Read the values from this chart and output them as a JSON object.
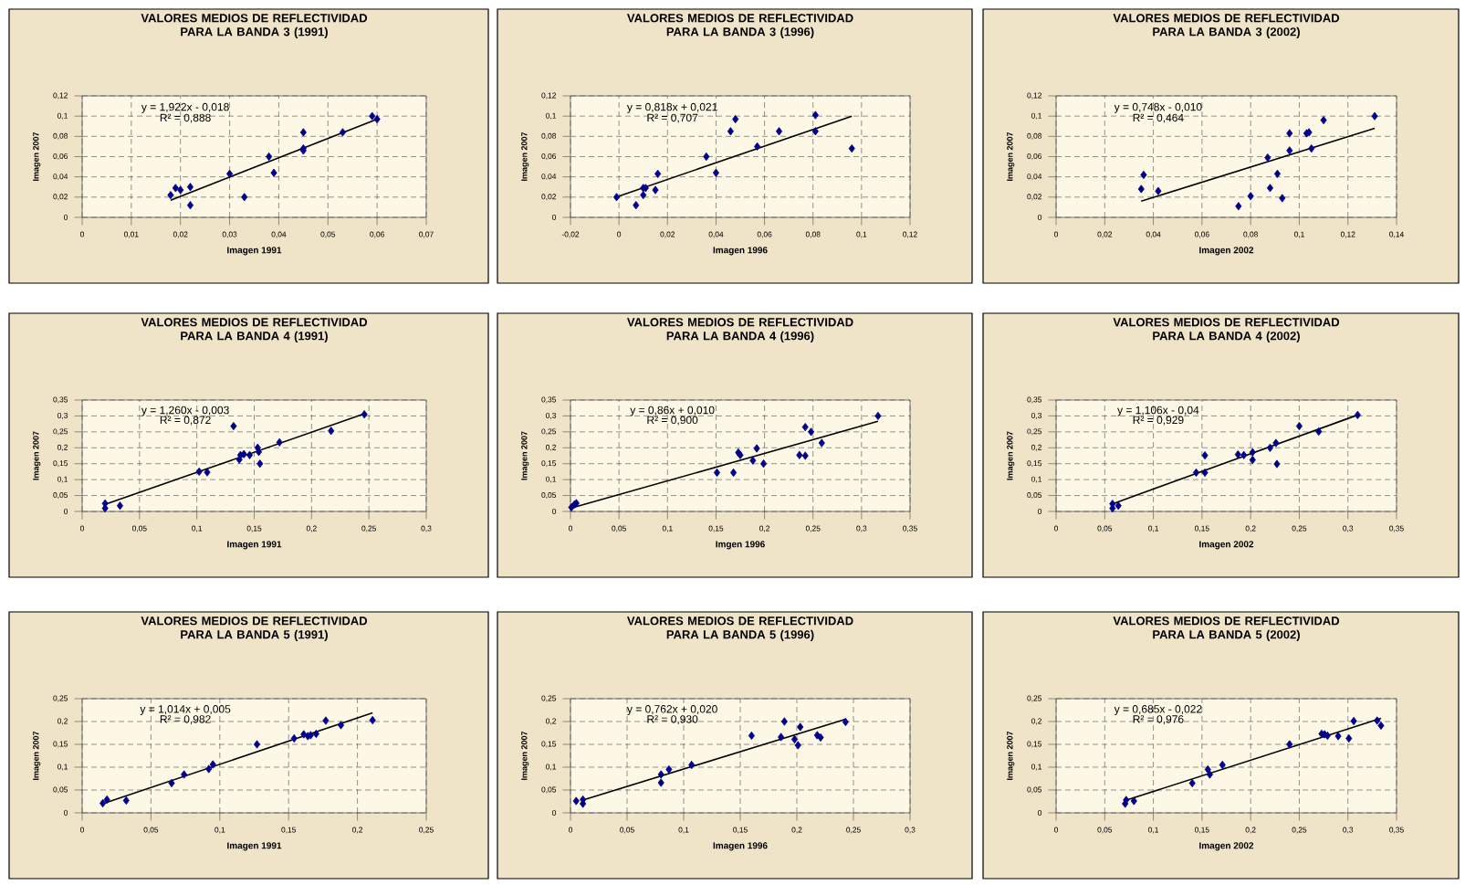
{
  "chart_data": [
    {
      "type": "scatter",
      "title": "VALORES MEDIOS DE REFLECTIVIDAD PARA LA BANDA 3 (1991)",
      "xlabel": "Imagen 1991",
      "ylabel": "Imagen 2007",
      "grid": true,
      "xlim": [
        0,
        0.07
      ],
      "ylim": [
        0,
        0.12
      ],
      "xticks": [
        0,
        {
          "value": 0.01,
          "label": "0,01"
        },
        {
          "value": 0.02,
          "label": "0,02"
        },
        {
          "value": 0.03,
          "label": "0,03"
        },
        {
          "value": 0.04,
          "label": "0,04"
        },
        {
          "value": 0.05,
          "label": "0,05"
        },
        {
          "value": 0.06,
          "label": "0,06"
        },
        {
          "value": 0.07,
          "label": "0,07"
        }
      ],
      "yticks": [
        0,
        {
          "value": 0.02,
          "label": "0,02"
        },
        {
          "value": 0.04,
          "label": "0,04"
        },
        {
          "value": 0.06,
          "label": "0,06"
        },
        {
          "value": 0.08,
          "label": "0,08"
        },
        {
          "value": 0.1,
          "label": "0,1"
        },
        {
          "value": 0.12,
          "label": "0,12"
        }
      ],
      "series": [
        {
          "type": "scatter",
          "marker": "diamond",
          "color": "#00008b",
          "x": [
            0.018,
            0.019,
            0.02,
            0.022,
            0.022,
            0.03,
            0.033,
            0.038,
            0.039,
            0.045,
            0.045,
            0.045,
            0.053,
            0.059,
            0.06
          ],
          "values": [
            0.022,
            0.029,
            0.027,
            0.03,
            0.012,
            0.043,
            0.02,
            0.06,
            0.044,
            0.084,
            0.068,
            0.066,
            0.084,
            0.1,
            0.097
          ]
        },
        {
          "type": "line",
          "color": "#000000",
          "x": [
            0.018,
            0.06
          ],
          "values": [
            0.017,
            0.097
          ]
        }
      ],
      "annotations": [
        "y = 1,922x - 0,018",
        "R² = 0,888"
      ]
    },
    {
      "type": "scatter",
      "title": "VALORES MEDIOS DE REFLECTIVIDAD PARA LA BANDA 3 (1996)",
      "xlabel": "Imagen 1996",
      "ylabel": "Imagen 2007",
      "grid": true,
      "xlim": [
        -0.02,
        0.12
      ],
      "ylim": [
        0,
        0.12
      ],
      "xticks": [
        {
          "value": -0.02,
          "label": "-0,02"
        },
        0,
        {
          "value": 0.02,
          "label": "0,02"
        },
        {
          "value": 0.04,
          "label": "0,04"
        },
        {
          "value": 0.06,
          "label": "0,06"
        },
        {
          "value": 0.08,
          "label": "0,08"
        },
        {
          "value": 0.1,
          "label": "0,1"
        },
        {
          "value": 0.12,
          "label": "0,12"
        }
      ],
      "yticks": [
        0,
        {
          "value": 0.02,
          "label": "0,02"
        },
        {
          "value": 0.04,
          "label": "0,04"
        },
        {
          "value": 0.06,
          "label": "0,06"
        },
        {
          "value": 0.08,
          "label": "0,08"
        },
        {
          "value": 0.1,
          "label": "0,1"
        },
        {
          "value": 0.12,
          "label": "0,12"
        }
      ],
      "series": [
        {
          "type": "scatter",
          "marker": "diamond",
          "color": "#00008b",
          "x": [
            -0.001,
            0.007,
            0.01,
            0.01,
            0.011,
            0.015,
            0.016,
            0.036,
            0.04,
            0.046,
            0.048,
            0.057,
            0.066,
            0.081,
            0.081,
            0.096
          ],
          "values": [
            0.02,
            0.012,
            0.022,
            0.029,
            0.029,
            0.027,
            0.043,
            0.06,
            0.044,
            0.085,
            0.097,
            0.07,
            0.085,
            0.101,
            0.085,
            0.068
          ]
        },
        {
          "type": "line",
          "color": "#000000",
          "x": [
            0,
            0.096
          ],
          "values": [
            0.021,
            0.1
          ]
        }
      ],
      "annotations": [
        "y = 0,818x + 0,021",
        "R² = 0,707"
      ]
    },
    {
      "type": "scatter",
      "title": "VALORES MEDIOS DE REFLECTIVIDAD PARA LA BANDA 3 (2002)",
      "xlabel": "Imagen 2002",
      "ylabel": "Imagen 2007",
      "grid": true,
      "xlim": [
        0,
        0.14
      ],
      "ylim": [
        0,
        0.12
      ],
      "xticks": [
        0,
        {
          "value": 0.02,
          "label": "0,02"
        },
        {
          "value": 0.04,
          "label": "0,04"
        },
        {
          "value": 0.06,
          "label": "0,06"
        },
        {
          "value": 0.08,
          "label": "0,08"
        },
        {
          "value": 0.1,
          "label": "0,1"
        },
        {
          "value": 0.12,
          "label": "0,12"
        },
        {
          "value": 0.14,
          "label": "0,14"
        }
      ],
      "yticks": [
        0,
        {
          "value": 0.02,
          "label": "0,02"
        },
        {
          "value": 0.04,
          "label": "0,04"
        },
        {
          "value": 0.06,
          "label": "0,06"
        },
        {
          "value": 0.08,
          "label": "0,08"
        },
        {
          "value": 0.1,
          "label": "0,1"
        },
        {
          "value": 0.12,
          "label": "0,12"
        }
      ],
      "series": [
        {
          "type": "scatter",
          "marker": "diamond",
          "color": "#00008b",
          "x": [
            0.035,
            0.036,
            0.042,
            0.075,
            0.08,
            0.087,
            0.088,
            0.091,
            0.093,
            0.096,
            0.096,
            0.103,
            0.104,
            0.105,
            0.11,
            0.131
          ],
          "values": [
            0.028,
            0.042,
            0.026,
            0.011,
            0.021,
            0.059,
            0.029,
            0.043,
            0.019,
            0.083,
            0.066,
            0.083,
            0.084,
            0.068,
            0.096,
            0.1
          ]
        },
        {
          "type": "line",
          "color": "#000000",
          "x": [
            0.035,
            0.131
          ],
          "values": [
            0.016,
            0.088
          ]
        }
      ],
      "annotations": [
        "y = 0,748x - 0,010",
        "R² = 0,464"
      ]
    },
    {
      "type": "scatter",
      "title": "VALORES MEDIOS DE REFLECTIVIDAD PARA LA BANDA 4 (1991)",
      "xlabel": "Imagen 1991",
      "ylabel": "Imagen 2007",
      "grid": true,
      "xlim": [
        0,
        0.3
      ],
      "ylim": [
        0,
        0.35
      ],
      "xticks": [
        0,
        {
          "value": 0.05,
          "label": "0,05"
        },
        {
          "value": 0.1,
          "label": "0,1"
        },
        {
          "value": 0.15,
          "label": "0,15"
        },
        {
          "value": 0.2,
          "label": "0,2"
        },
        {
          "value": 0.25,
          "label": "0,25"
        },
        {
          "value": 0.3,
          "label": "0,3"
        }
      ],
      "yticks": [
        0,
        {
          "value": 0.05,
          "label": "0,05"
        },
        {
          "value": 0.1,
          "label": "0,1"
        },
        {
          "value": 0.15,
          "label": "0,15"
        },
        {
          "value": 0.2,
          "label": "0,2"
        },
        {
          "value": 0.25,
          "label": "0,25"
        },
        {
          "value": 0.3,
          "label": "0,3"
        },
        {
          "value": 0.35,
          "label": "0,35"
        }
      ],
      "series": [
        {
          "type": "scatter",
          "marker": "diamond",
          "color": "#00008b",
          "x": [
            0.02,
            0.02,
            0.033,
            0.102,
            0.109,
            0.132,
            0.137,
            0.138,
            0.141,
            0.146,
            0.153,
            0.154,
            0.155,
            0.172,
            0.217,
            0.246
          ],
          "values": [
            0.01,
            0.025,
            0.018,
            0.125,
            0.123,
            0.268,
            0.163,
            0.177,
            0.18,
            0.177,
            0.2,
            0.187,
            0.15,
            0.217,
            0.253,
            0.305
          ]
        },
        {
          "type": "line",
          "color": "#000000",
          "x": [
            0.02,
            0.246
          ],
          "values": [
            0.022,
            0.307
          ]
        }
      ],
      "annotations": [
        "y = 1,260x - 0,003",
        "R² = 0,872"
      ]
    },
    {
      "type": "scatter",
      "title": "VALORES MEDIOS DE REFLECTIVIDAD PARA LA BANDA 4 (1996)",
      "xlabel": "Imgen 1996",
      "ylabel": "Imagen 2007",
      "grid": true,
      "xlim": [
        0,
        0.35
      ],
      "ylim": [
        0,
        0.35
      ],
      "xticks": [
        0,
        {
          "value": 0.05,
          "label": "0,05"
        },
        {
          "value": 0.1,
          "label": "0,1"
        },
        {
          "value": 0.15,
          "label": "0,15"
        },
        {
          "value": 0.2,
          "label": "0,2"
        },
        {
          "value": 0.25,
          "label": "0,25"
        },
        {
          "value": 0.3,
          "label": "0,3"
        },
        {
          "value": 0.35,
          "label": "0,35"
        }
      ],
      "yticks": [
        0,
        {
          "value": 0.05,
          "label": "0,05"
        },
        {
          "value": 0.1,
          "label": "0,1"
        },
        {
          "value": 0.15,
          "label": "0,15"
        },
        {
          "value": 0.2,
          "label": "0,2"
        },
        {
          "value": 0.25,
          "label": "0,25"
        },
        {
          "value": 0.3,
          "label": "0,3"
        },
        {
          "value": 0.35,
          "label": "0,35"
        }
      ],
      "series": [
        {
          "type": "scatter",
          "marker": "diamond",
          "color": "#00008b",
          "x": [
            0.001,
            0.004,
            0.006,
            0.151,
            0.168,
            0.173,
            0.175,
            0.188,
            0.192,
            0.199,
            0.236,
            0.242,
            0.242,
            0.248,
            0.259,
            0.317
          ],
          "values": [
            0.013,
            0.022,
            0.026,
            0.122,
            0.122,
            0.185,
            0.177,
            0.16,
            0.198,
            0.15,
            0.177,
            0.265,
            0.175,
            0.25,
            0.215,
            0.3
          ]
        },
        {
          "type": "line",
          "color": "#000000",
          "x": [
            0,
            0.317
          ],
          "values": [
            0.01,
            0.283
          ]
        }
      ],
      "annotations": [
        "y = 0,86x + 0,010",
        "R² = 0,900"
      ]
    },
    {
      "type": "scatter",
      "title": "VALORES MEDIOS DE REFLECTIVIDAD PARA LA BANDA 4 (2002)",
      "xlabel": "Imagen 2002",
      "ylabel": "Imagen 2007",
      "grid": true,
      "xlim": [
        0,
        0.35
      ],
      "ylim": [
        0,
        0.35
      ],
      "xticks": [
        0,
        {
          "value": 0.05,
          "label": "0,05"
        },
        {
          "value": 0.1,
          "label": "0,1"
        },
        {
          "value": 0.15,
          "label": "0,15"
        },
        {
          "value": 0.2,
          "label": "0,2"
        },
        {
          "value": 0.25,
          "label": "0,25"
        },
        {
          "value": 0.3,
          "label": "0,3"
        },
        {
          "value": 0.35,
          "label": "0,35"
        }
      ],
      "yticks": [
        0,
        {
          "value": 0.05,
          "label": "0,05"
        },
        {
          "value": 0.1,
          "label": "0,1"
        },
        {
          "value": 0.15,
          "label": "0,15"
        },
        {
          "value": 0.2,
          "label": "0,2"
        },
        {
          "value": 0.25,
          "label": "0,25"
        },
        {
          "value": 0.3,
          "label": "0,3"
        },
        {
          "value": 0.35,
          "label": "0,35"
        }
      ],
      "series": [
        {
          "type": "scatter",
          "marker": "diamond",
          "color": "#00008b",
          "x": [
            0.058,
            0.058,
            0.064,
            0.144,
            0.153,
            0.153,
            0.187,
            0.193,
            0.202,
            0.202,
            0.22,
            0.226,
            0.227,
            0.25,
            0.27,
            0.31
          ],
          "values": [
            0.024,
            0.01,
            0.018,
            0.122,
            0.122,
            0.176,
            0.179,
            0.177,
            0.186,
            0.162,
            0.2,
            0.215,
            0.149,
            0.268,
            0.251,
            0.303
          ]
        },
        {
          "type": "line",
          "color": "#000000",
          "x": [
            0.058,
            0.31
          ],
          "values": [
            0.024,
            0.303
          ]
        }
      ],
      "annotations": [
        "y = 1,106x - 0,04",
        "R² = 0,929"
      ]
    },
    {
      "type": "scatter",
      "title": "VALORES MEDIOS DE REFLECTIVIDAD PARA LA BANDA 5 (1991)",
      "xlabel": "Imagen 1991",
      "ylabel": "Imagen 2007",
      "grid": true,
      "xlim": [
        0,
        0.25
      ],
      "ylim": [
        0,
        0.25
      ],
      "xticks": [
        0,
        {
          "value": 0.05,
          "label": "0,05"
        },
        {
          "value": 0.1,
          "label": "0,1"
        },
        {
          "value": 0.15,
          "label": "0,15"
        },
        {
          "value": 0.2,
          "label": "0,2"
        },
        {
          "value": 0.25,
          "label": "0,25"
        }
      ],
      "yticks": [
        0,
        {
          "value": 0.05,
          "label": "0,05"
        },
        {
          "value": 0.1,
          "label": "0,1"
        },
        {
          "value": 0.15,
          "label": "0,15"
        },
        {
          "value": 0.2,
          "label": "0,2"
        },
        {
          "value": 0.25,
          "label": "0,25"
        }
      ],
      "series": [
        {
          "type": "scatter",
          "marker": "diamond",
          "color": "#00008b",
          "x": [
            0.015,
            0.018,
            0.032,
            0.065,
            0.074,
            0.092,
            0.095,
            0.127,
            0.154,
            0.161,
            0.164,
            0.166,
            0.17,
            0.177,
            0.188,
            0.211
          ],
          "values": [
            0.021,
            0.029,
            0.027,
            0.065,
            0.084,
            0.096,
            0.106,
            0.15,
            0.163,
            0.172,
            0.168,
            0.17,
            0.173,
            0.202,
            0.192,
            0.203
          ]
        },
        {
          "type": "line",
          "color": "#000000",
          "x": [
            0.015,
            0.211
          ],
          "values": [
            0.02,
            0.219
          ]
        }
      ],
      "annotations": [
        "y = 1,014x + 0,005",
        "R² = 0,982"
      ]
    },
    {
      "type": "scatter",
      "title": "VALORES MEDIOS DE REFLECTIVIDAD PARA LA BANDA 5 (1996)",
      "xlabel": "Imagen 1996",
      "ylabel": "Imagen 2007",
      "grid": true,
      "xlim": [
        0,
        0.3
      ],
      "ylim": [
        0,
        0.25
      ],
      "xticks": [
        0,
        {
          "value": 0.05,
          "label": "0,05"
        },
        {
          "value": 0.1,
          "label": "0,1"
        },
        {
          "value": 0.15,
          "label": "0,15"
        },
        {
          "value": 0.2,
          "label": "0,2"
        },
        {
          "value": 0.25,
          "label": "0,25"
        },
        {
          "value": 0.3,
          "label": "0,3"
        }
      ],
      "yticks": [
        0,
        {
          "value": 0.05,
          "label": "0,05"
        },
        {
          "value": 0.1,
          "label": "0,1"
        },
        {
          "value": 0.15,
          "label": "0,15"
        },
        {
          "value": 0.2,
          "label": "0,2"
        },
        {
          "value": 0.25,
          "label": "0,25"
        }
      ],
      "series": [
        {
          "type": "scatter",
          "marker": "diamond",
          "color": "#00008b",
          "x": [
            0.005,
            0.011,
            0.011,
            0.08,
            0.08,
            0.087,
            0.107,
            0.16,
            0.186,
            0.189,
            0.198,
            0.201,
            0.203,
            0.218,
            0.221,
            0.243
          ],
          "values": [
            0.026,
            0.029,
            0.02,
            0.084,
            0.066,
            0.095,
            0.105,
            0.169,
            0.166,
            0.2,
            0.161,
            0.148,
            0.188,
            0.17,
            0.165,
            0.199
          ]
        },
        {
          "type": "line",
          "color": "#000000",
          "x": [
            0.011,
            0.243
          ],
          "values": [
            0.028,
            0.205
          ]
        }
      ],
      "annotations": [
        "y = 0,762x + 0,020",
        "R² = 0,930"
      ]
    },
    {
      "type": "scatter",
      "title": "VALORES MEDIOS DE REFLECTIVIDAD PARA LA BANDA 5 (2002)",
      "xlabel": "Imagen 2002",
      "ylabel": "Imagen 2007",
      "grid": true,
      "xlim": [
        0,
        0.35
      ],
      "ylim": [
        0,
        0.25
      ],
      "xticks": [
        0,
        {
          "value": 0.05,
          "label": "0,05"
        },
        {
          "value": 0.1,
          "label": "0,1"
        },
        {
          "value": 0.15,
          "label": "0,15"
        },
        {
          "value": 0.2,
          "label": "0,2"
        },
        {
          "value": 0.25,
          "label": "0,25"
        },
        {
          "value": 0.3,
          "label": "0,3"
        },
        {
          "value": 0.35,
          "label": "0,35"
        }
      ],
      "yticks": [
        0,
        {
          "value": 0.05,
          "label": "0,05"
        },
        {
          "value": 0.1,
          "label": "0,1"
        },
        {
          "value": 0.15,
          "label": "0,15"
        },
        {
          "value": 0.2,
          "label": "0,2"
        },
        {
          "value": 0.25,
          "label": "0,25"
        }
      ],
      "series": [
        {
          "type": "scatter",
          "marker": "diamond",
          "color": "#00008b",
          "x": [
            0.071,
            0.072,
            0.08,
            0.14,
            0.156,
            0.158,
            0.171,
            0.24,
            0.273,
            0.276,
            0.279,
            0.29,
            0.301,
            0.306,
            0.33,
            0.334
          ],
          "values": [
            0.02,
            0.028,
            0.026,
            0.065,
            0.095,
            0.084,
            0.105,
            0.15,
            0.173,
            0.172,
            0.169,
            0.168,
            0.163,
            0.201,
            0.202,
            0.191
          ]
        },
        {
          "type": "line",
          "color": "#000000",
          "x": [
            0.071,
            0.334
          ],
          "values": [
            0.027,
            0.207
          ]
        }
      ],
      "annotations": [
        "y = 0,685x - 0,022",
        "R² = 0,976"
      ]
    }
  ]
}
